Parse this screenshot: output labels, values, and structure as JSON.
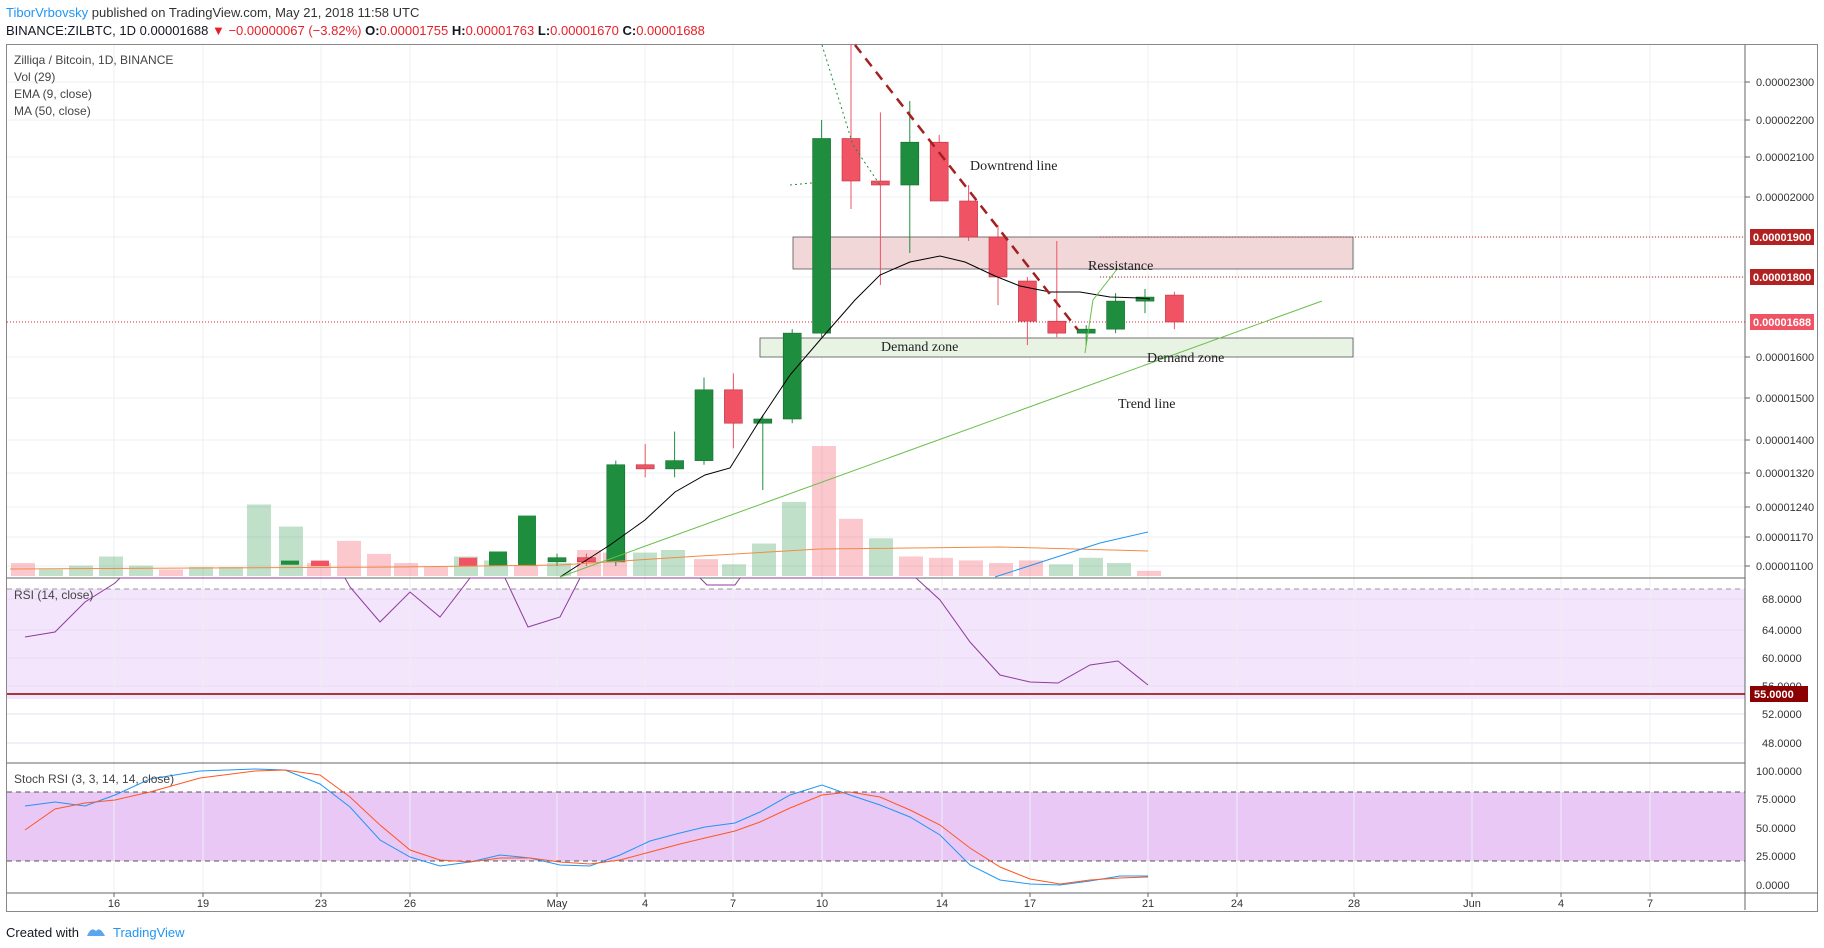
{
  "header": {
    "author": "TiborVrbovsky",
    "published_text": "published on TradingView.com, May 21, 2018 11:58 UTC"
  },
  "ohlc": {
    "symbol": "BINANCE:ZILBTC, 1D",
    "last": "0.00001688",
    "change_arrow": "▼",
    "change": "−0.00000067 (−3.82%)",
    "o_label": "O:",
    "o": "0.00001755",
    "h_label": "H:",
    "h": "0.00001763",
    "l_label": "L:",
    "l": "0.00001670",
    "c_label": "C:",
    "c": "0.00001688"
  },
  "legend": {
    "title": "Zilliqa / Bitcoin, 1D, BINANCE",
    "vol": "Vol (29)",
    "ema": "EMA (9, close)",
    "ma": "MA (50, close)"
  },
  "rsi_panel": {
    "label": "RSI (14, close)",
    "level_badge": "55.0000"
  },
  "stoch_panel": {
    "label": "Stoch RSI (3, 3, 14, 14, close)"
  },
  "annotations": {
    "downtrend": "Downtrend line",
    "resistance": "Ressistance",
    "demand1": "Demand zone",
    "demand2": "Demand zone",
    "trendline": "Trend line"
  },
  "price_badges": {
    "r1": "0.00001900",
    "r2": "0.00001800",
    "last": "0.00001688"
  },
  "footer": {
    "created_with": "Created with",
    "brand": "TradingView"
  },
  "colors": {
    "bull": "#1e8e3e",
    "bear": "#ef5364",
    "ema": "#000000",
    "ma": "#f28b45",
    "rsi": "#8e3b9c",
    "stoch_k": "#2196f3",
    "stoch_d": "#ff5722",
    "badge": "#b22222",
    "trend": "#6abf4b",
    "downtrend": "#a32020"
  },
  "chart_data": {
    "type": "candlestick",
    "price_axis_ticks": [
      "0.00002300",
      "0.00002200",
      "0.00002100",
      "0.00002000",
      "0.00001900",
      "0.00001800",
      "0.00001688",
      "0.00001600",
      "0.00001500",
      "0.00001400",
      "0.00001320",
      "0.00001240",
      "0.00001170",
      "0.00001100"
    ],
    "rsi_axis_ticks": [
      "68.0000",
      "64.0000",
      "60.0000",
      "56.0000",
      "52.0000",
      "48.0000"
    ],
    "stoch_axis_ticks": [
      "100.0000",
      "75.0000",
      "50.0000",
      "25.0000",
      "0.0000"
    ],
    "x_ticks": [
      "16",
      "19",
      "23",
      "26",
      "May",
      "4",
      "7",
      "10",
      "14",
      "17",
      "21",
      "24",
      "28",
      "Jun",
      "4",
      "7"
    ],
    "candles": [
      {
        "date": "Apr 30",
        "o": 1.11e-05,
        "h": 1.13e-05,
        "l": 1.1e-05,
        "c": 1.12e-05
      },
      {
        "date": "May 1",
        "o": 1.12e-05,
        "h": 1.13e-05,
        "l": 1.1e-05,
        "c": 1.11e-05
      },
      {
        "date": "May 2",
        "o": 1.11e-05,
        "h": 1.35e-05,
        "l": 1.1e-05,
        "c": 1.34e-05
      },
      {
        "date": "May 3",
        "o": 1.34e-05,
        "h": 1.39e-05,
        "l": 1.31e-05,
        "c": 1.33e-05
      },
      {
        "date": "May 4",
        "o": 1.33e-05,
        "h": 1.42e-05,
        "l": 1.31e-05,
        "c": 1.35e-05
      },
      {
        "date": "May 5",
        "o": 1.35e-05,
        "h": 1.55e-05,
        "l": 1.34e-05,
        "c": 1.52e-05
      },
      {
        "date": "May 6",
        "o": 1.52e-05,
        "h": 1.56e-05,
        "l": 1.38e-05,
        "c": 1.44e-05
      },
      {
        "date": "May 7",
        "o": 1.44e-05,
        "h": 1.46e-05,
        "l": 1.28e-05,
        "c": 1.45e-05
      },
      {
        "date": "May 8",
        "o": 1.45e-05,
        "h": 1.67e-05,
        "l": 1.44e-05,
        "c": 1.66e-05
      },
      {
        "date": "May 9",
        "o": 1.66e-05,
        "h": 2.2e-05,
        "l": 1.65e-05,
        "c": 2.15e-05
      },
      {
        "date": "May 10",
        "o": 2.15e-05,
        "h": 2.4e-05,
        "l": 1.97e-05,
        "c": 2.04e-05
      },
      {
        "date": "May 11",
        "o": 2.04e-05,
        "h": 2.22e-05,
        "l": 1.78e-05,
        "c": 2.03e-05
      },
      {
        "date": "May 12",
        "o": 2.03e-05,
        "h": 2.25e-05,
        "l": 1.86e-05,
        "c": 2.14e-05
      },
      {
        "date": "May 13",
        "o": 2.14e-05,
        "h": 2.16e-05,
        "l": 1.99e-05,
        "c": 1.99e-05
      },
      {
        "date": "May 14",
        "o": 1.99e-05,
        "h": 2.03e-05,
        "l": 1.89e-05,
        "c": 1.9e-05
      },
      {
        "date": "May 15",
        "o": 1.9e-05,
        "h": 1.93e-05,
        "l": 1.73e-05,
        "c": 1.8e-05
      },
      {
        "date": "May 16",
        "o": 1.79e-05,
        "h": 1.8e-05,
        "l": 1.63e-05,
        "c": 1.69e-05
      },
      {
        "date": "May 17",
        "o": 1.69e-05,
        "h": 1.89e-05,
        "l": 1.65e-05,
        "c": 1.66e-05
      },
      {
        "date": "May 18",
        "o": 1.66e-05,
        "h": 1.68e-05,
        "l": 1.63e-05,
        "c": 1.67e-05
      },
      {
        "date": "May 19",
        "o": 1.67e-05,
        "h": 1.76e-05,
        "l": 1.66e-05,
        "c": 1.74e-05
      },
      {
        "date": "May 20",
        "o": 1.74e-05,
        "h": 1.77e-05,
        "l": 1.71e-05,
        "c": 1.75e-05
      },
      {
        "date": "May 21",
        "o": 1.755e-05,
        "h": 1.763e-05,
        "l": 1.67e-05,
        "c": 1.688e-05
      }
    ]
  }
}
